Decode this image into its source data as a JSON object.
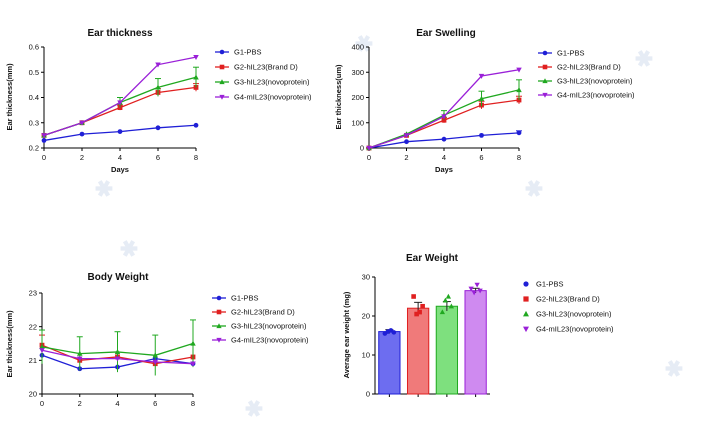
{
  "chart_data": [
    {
      "id": "ear-thickness",
      "type": "line",
      "title": "Ear thickness",
      "xlabel": "Days",
      "ylabel": "Ear thickness(mm)",
      "x": [
        0,
        2,
        4,
        6,
        8
      ],
      "xticks": [
        "0",
        "2",
        "4",
        "6",
        "8"
      ],
      "ylim": [
        0.2,
        0.6
      ],
      "yticks": [
        "0.2",
        "0.3",
        "0.4",
        "0.5",
        "0.6"
      ],
      "legend_position": "right",
      "series": [
        {
          "name": "G1-PBS",
          "color": "#1f1fd6",
          "marker": "circle",
          "values": [
            0.23,
            0.255,
            0.265,
            0.28,
            0.29
          ],
          "err": [
            0,
            0,
            0,
            0,
            0
          ]
        },
        {
          "name": "G2-hIL23(Brand D)",
          "color": "#e02020",
          "marker": "square",
          "values": [
            0.25,
            0.3,
            0.36,
            0.42,
            0.44
          ],
          "err": [
            0,
            0,
            0.01,
            0.015,
            0.015
          ]
        },
        {
          "name": "G3-hIL23(novoprotein)",
          "color": "#20a820",
          "marker": "triangle",
          "values": [
            0.25,
            0.3,
            0.38,
            0.44,
            0.48
          ],
          "err": [
            0,
            0,
            0.02,
            0.035,
            0.04
          ]
        },
        {
          "name": "G4-mIL23(novoprotein)",
          "color": "#9a20d8",
          "marker": "triangle-down",
          "values": [
            0.25,
            0.3,
            0.38,
            0.53,
            0.56
          ],
          "err": [
            0,
            0,
            0,
            0,
            0
          ]
        }
      ]
    },
    {
      "id": "ear-swelling",
      "type": "line",
      "title": "Ear Swelling",
      "xlabel": "Days",
      "ylabel": "Ear thickness(um)",
      "x": [
        0,
        2,
        4,
        6,
        8
      ],
      "xticks": [
        "0",
        "2",
        "4",
        "6",
        "8"
      ],
      "ylim": [
        0,
        400
      ],
      "yticks": [
        "0",
        "100",
        "200",
        "300",
        "400"
      ],
      "legend_position": "right",
      "series": [
        {
          "name": "G1-PBS",
          "color": "#1f1fd6",
          "marker": "circle",
          "values": [
            0,
            25,
            35,
            50,
            60
          ],
          "err": [
            0,
            0,
            0,
            0,
            8
          ]
        },
        {
          "name": "G2-hIL23(Brand D)",
          "color": "#e02020",
          "marker": "square",
          "values": [
            0,
            50,
            110,
            170,
            190
          ],
          "err": [
            0,
            0,
            10,
            15,
            15
          ]
        },
        {
          "name": "G3-hIL23(novoprotein)",
          "color": "#20a820",
          "marker": "triangle",
          "values": [
            0,
            55,
            130,
            195,
            230
          ],
          "err": [
            0,
            0,
            18,
            30,
            40
          ]
        },
        {
          "name": "G4-mIL23(novoprotein)",
          "color": "#9a20d8",
          "marker": "triangle-down",
          "values": [
            0,
            50,
            125,
            285,
            310
          ],
          "err": [
            0,
            0,
            0,
            0,
            0
          ]
        }
      ]
    },
    {
      "id": "body-weight",
      "type": "line",
      "title": "Body Weight",
      "xlabel": "",
      "ylabel": "Ear thickness(mm)",
      "x": [
        0,
        2,
        4,
        6,
        8
      ],
      "xticks": [
        "0",
        "2",
        "4",
        "6",
        "8"
      ],
      "ylim": [
        20,
        23
      ],
      "yticks": [
        "20",
        "21",
        "22",
        "23"
      ],
      "legend_position": "right",
      "series": [
        {
          "name": "G1-PBS",
          "color": "#1f1fd6",
          "marker": "circle",
          "values": [
            21.15,
            20.75,
            20.8,
            21.05,
            20.9
          ],
          "err": [
            0,
            0,
            0,
            0,
            0
          ]
        },
        {
          "name": "G2-hIL23(Brand D)",
          "color": "#e02020",
          "marker": "square",
          "values": [
            21.45,
            21.0,
            21.1,
            20.9,
            21.1
          ],
          "err": [
            0.3,
            0,
            0,
            0,
            0
          ]
        },
        {
          "name": "G3-hIL23(novoprotein)",
          "color": "#20a820",
          "marker": "triangle",
          "values": [
            21.4,
            21.2,
            21.25,
            21.15,
            21.5
          ],
          "err": [
            0.5,
            0.5,
            0.6,
            0.6,
            0.7
          ]
        },
        {
          "name": "G4-mIL23(novoprotein)",
          "color": "#9a20d8",
          "marker": "triangle-down",
          "values": [
            21.3,
            21.05,
            21.05,
            20.95,
            20.9
          ],
          "err": [
            0,
            0,
            0,
            0,
            0
          ]
        }
      ]
    },
    {
      "id": "ear-weight",
      "type": "bar",
      "title": "Ear Weight",
      "xlabel": "",
      "ylabel": "Average ear weight (mg)",
      "ylim": [
        0,
        30
      ],
      "yticks": [
        "0",
        "10",
        "20",
        "30"
      ],
      "legend_position": "right",
      "series": [
        {
          "name": "G1-PBS",
          "color": "#1f1fd6",
          "fill": "#6d6df0",
          "marker": "circle",
          "value": 16,
          "err": 0.5,
          "points": [
            15.5,
            16.0,
            16.3,
            15.8
          ]
        },
        {
          "name": "G2-hIL23(Brand D)",
          "color": "#e02020",
          "fill": "#f07a7a",
          "marker": "square",
          "value": 22,
          "err": 1.5,
          "points": [
            25.0,
            20.5,
            21.0,
            22.5
          ]
        },
        {
          "name": "G3-hIL23(novoprotein)",
          "color": "#20a820",
          "fill": "#7ee07e",
          "marker": "triangle",
          "value": 22.5,
          "err": 1.2,
          "points": [
            21.0,
            24.0,
            25.0,
            22.5
          ]
        },
        {
          "name": "G4-mIL23(novoprotein)",
          "color": "#9a20d8",
          "fill": "#cf8af0",
          "marker": "triangle-down",
          "value": 26.5,
          "err": 0.6,
          "points": [
            27.0,
            26.0,
            28.0,
            26.5
          ]
        }
      ]
    }
  ]
}
